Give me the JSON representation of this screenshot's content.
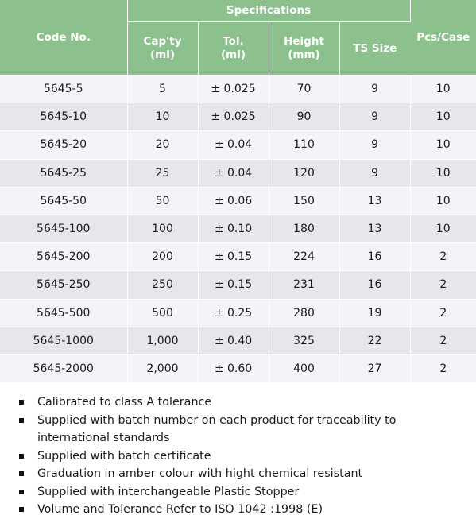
{
  "table": {
    "headers": {
      "code": "Code No.",
      "group": "Specifications",
      "capacity": [
        "Cap'ty",
        "(ml)"
      ],
      "tolerance": [
        "Tol.",
        "(ml)"
      ],
      "height": [
        "Height",
        "(mm)"
      ],
      "ts_size": "TS Size",
      "pcs": "Pcs/Case"
    },
    "rows": [
      [
        "5645-5",
        "5",
        "± 0.025",
        "70",
        "9",
        "10"
      ],
      [
        "5645-10",
        "10",
        "± 0.025",
        "90",
        "9",
        "10"
      ],
      [
        "5645-20",
        "20",
        "± 0.04",
        "110",
        "9",
        "10"
      ],
      [
        "5645-25",
        "25",
        "± 0.04",
        "120",
        "9",
        "10"
      ],
      [
        "5645-50",
        "50",
        "± 0.06",
        "150",
        "13",
        "10"
      ],
      [
        "5645-100",
        "100",
        "± 0.10",
        "180",
        "13",
        "10"
      ],
      [
        "5645-200",
        "200",
        "± 0.15",
        "224",
        "16",
        "2"
      ],
      [
        "5645-250",
        "250",
        "± 0.15",
        "231",
        "16",
        "2"
      ],
      [
        "5645-500",
        "500",
        "± 0.25",
        "280",
        "19",
        "2"
      ],
      [
        "5645-1000",
        "1,000",
        "± 0.40",
        "325",
        "22",
        "2"
      ],
      [
        "5645-2000",
        "2,000",
        "± 0.60",
        "400",
        "27",
        "2"
      ]
    ]
  },
  "notes": [
    "Calibrated to class A tolerance",
    "Supplied with batch number on each product for traceability to international standards",
    "Supplied with batch certificate",
    "Graduation in amber colour with hight chemical resistant",
    "Supplied with interchangeable Plastic Stopper",
    "Volume and Tolerance Refer to ISO 1042 :1998 (E)"
  ],
  "colors": {
    "header_bg": "#8cc08c",
    "row_light": "#f3f4f8",
    "row_dark": "#e5e7ec"
  }
}
